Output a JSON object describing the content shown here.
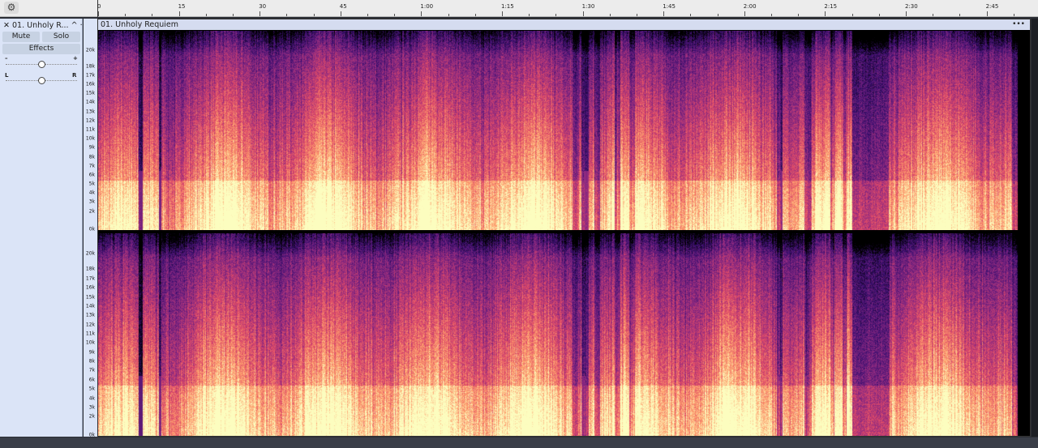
{
  "ruler": {
    "labels": [
      "0",
      "15",
      "30",
      "45",
      "1:00",
      "1:15",
      "1:30",
      "1:45",
      "2:00",
      "2:15",
      "2:30",
      "2:45"
    ]
  },
  "track": {
    "name": "01. Unholy R...",
    "mute": "Mute",
    "solo": "Solo",
    "effects": "Effects",
    "gain_minus": "–",
    "gain_plus": "+",
    "pan_left": "L",
    "pan_right": "R",
    "gain": 0.5,
    "pan": 0.5
  },
  "clip": {
    "title": "01. Unholy Requiem",
    "menu": "•••"
  },
  "freq_axis": {
    "labels": [
      "20k",
      "18k",
      "17k",
      "16k",
      "15k",
      "14k",
      "13k",
      "12k",
      "11k",
      "10k",
      "9k",
      "8k",
      "7k",
      "6k",
      "5k",
      "4k",
      "3k",
      "2k",
      "0k"
    ]
  },
  "spectrogram": {
    "colormap": [
      "#000000",
      "#3b0f70",
      "#8c2981",
      "#de4968",
      "#fe9f6d",
      "#fcfdbf"
    ]
  }
}
